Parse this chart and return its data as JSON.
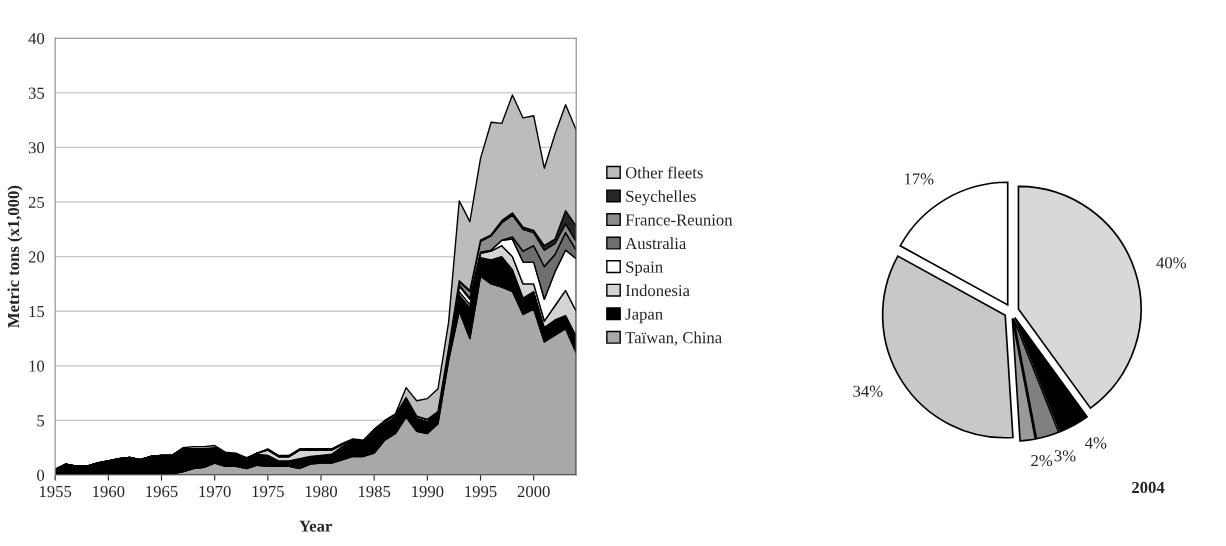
{
  "chart_data": [
    {
      "type": "area",
      "stacked": true,
      "xlabel": "Year",
      "ylabel": "Metric tons (x1,000)",
      "x": [
        1955,
        1956,
        1957,
        1958,
        1959,
        1960,
        1961,
        1962,
        1963,
        1964,
        1965,
        1966,
        1967,
        1968,
        1969,
        1970,
        1971,
        1972,
        1973,
        1974,
        1975,
        1976,
        1977,
        1978,
        1979,
        1980,
        1981,
        1982,
        1983,
        1984,
        1985,
        1986,
        1987,
        1988,
        1989,
        1990,
        1991,
        1992,
        1993,
        1994,
        1995,
        1996,
        1997,
        1998,
        1999,
        2000,
        2001,
        2002,
        2003,
        2004
      ],
      "xlim": [
        1955,
        2004
      ],
      "xticks": [
        1955,
        1960,
        1965,
        1970,
        1975,
        1980,
        1985,
        1990,
        1995,
        2000
      ],
      "ylim": [
        0,
        40
      ],
      "yticks": [
        0,
        5,
        10,
        15,
        20,
        25,
        30,
        35,
        40
      ],
      "grid": "y",
      "legend": "right",
      "series": [
        {
          "name": "Taïwan, China",
          "color": "#a8a8a8",
          "values": [
            0.1,
            0.1,
            0.1,
            0.1,
            0.1,
            0.1,
            0.1,
            0.1,
            0.1,
            0.1,
            0.1,
            0.1,
            0.3,
            0.6,
            0.7,
            1.1,
            0.8,
            0.8,
            0.6,
            0.9,
            0.8,
            0.8,
            0.8,
            0.6,
            1.0,
            1.1,
            1.1,
            1.4,
            1.7,
            1.7,
            2.0,
            3.2,
            3.8,
            5.3,
            4.0,
            3.8,
            4.7,
            10.5,
            15.0,
            12.5,
            18.2,
            17.5,
            17.2,
            16.8,
            14.7,
            15.2,
            12.2,
            12.8,
            13.4,
            11.2
          ]
        },
        {
          "name": "Japan",
          "color": "#000000",
          "values": [
            0.4,
            0.9,
            0.7,
            0.7,
            1.0,
            1.2,
            1.4,
            1.5,
            1.3,
            1.6,
            1.7,
            1.7,
            2.1,
            1.8,
            1.7,
            1.3,
            1.2,
            1.1,
            0.9,
            1.0,
            1.0,
            0.5,
            0.5,
            0.9,
            0.7,
            0.7,
            0.8,
            1.2,
            1.4,
            1.3,
            2.0,
            1.5,
            1.5,
            1.6,
            1.2,
            1.1,
            1.0,
            1.0,
            1.5,
            2.8,
            1.7,
            2.2,
            2.8,
            2.0,
            1.5,
            1.6,
            1.3,
            1.4,
            1.2,
            1.5
          ]
        },
        {
          "name": "Indonesia",
          "color": "#d4d4d4",
          "values": [
            0,
            0,
            0,
            0,
            0,
            0,
            0,
            0,
            0,
            0,
            0,
            0,
            0,
            0,
            0,
            0.1,
            0,
            0,
            0,
            0.1,
            0.5,
            0.4,
            0.4,
            0.8,
            0.6,
            0.5,
            0.4,
            0.2,
            0.1,
            0.1,
            0.1,
            0.2,
            0.2,
            0.2,
            0.2,
            0.2,
            0.1,
            0.1,
            0.3,
            0.3,
            0.4,
            0.8,
            1.0,
            1.2,
            1.3,
            0.7,
            0.6,
            1.3,
            2.3,
            2.3
          ]
        },
        {
          "name": "Spain",
          "color": "#ffffff",
          "values": [
            0,
            0,
            0,
            0,
            0,
            0,
            0,
            0,
            0,
            0,
            0,
            0,
            0,
            0,
            0,
            0,
            0,
            0,
            0,
            0,
            0,
            0,
            0,
            0,
            0,
            0,
            0,
            0,
            0,
            0,
            0,
            0,
            0,
            0,
            0,
            0,
            0,
            0,
            0.5,
            0.5,
            0.1,
            0.1,
            0.5,
            1.6,
            2.0,
            2.0,
            2.0,
            3.1,
            3.7,
            4.8
          ]
        },
        {
          "name": "Australia",
          "color": "#6e6e6e",
          "values": [
            0,
            0,
            0,
            0,
            0,
            0,
            0,
            0,
            0,
            0,
            0,
            0,
            0,
            0,
            0,
            0,
            0,
            0,
            0,
            0,
            0,
            0,
            0,
            0,
            0,
            0,
            0,
            0,
            0,
            0,
            0,
            0,
            0,
            0,
            0,
            0,
            0,
            0,
            0.1,
            0.1,
            0,
            0,
            0,
            0.2,
            1.0,
            1.5,
            3.0,
            1.6,
            1.6,
            0.8
          ]
        },
        {
          "name": "France-Reunion",
          "color": "#8c8c8c",
          "values": [
            0,
            0,
            0,
            0,
            0,
            0,
            0,
            0,
            0,
            0,
            0,
            0,
            0,
            0,
            0,
            0,
            0,
            0,
            0,
            0,
            0,
            0,
            0,
            0,
            0,
            0,
            0,
            0,
            0,
            0,
            0,
            0,
            0,
            0,
            0,
            0,
            0,
            0,
            0.3,
            0.6,
            1.0,
            1.3,
            1.6,
            2.0,
            2.0,
            1.2,
            1.5,
            1.0,
            0.8,
            0.8
          ]
        },
        {
          "name": "Seychelles",
          "color": "#262626",
          "values": [
            0,
            0,
            0,
            0,
            0,
            0,
            0,
            0,
            0,
            0,
            0,
            0,
            0,
            0,
            0,
            0,
            0,
            0,
            0,
            0,
            0,
            0,
            0,
            0,
            0,
            0,
            0,
            0,
            0,
            0,
            0,
            0,
            0,
            0,
            0,
            0,
            0,
            0,
            0.1,
            0.1,
            0.1,
            0.1,
            0.2,
            0.2,
            0.2,
            0.2,
            0.4,
            0.4,
            1.2,
            1.4
          ]
        },
        {
          "name": "Other fleets",
          "color": "#bcbcbc",
          "values": [
            0,
            0,
            0,
            0,
            0,
            0,
            0,
            0,
            0,
            0,
            0,
            0,
            0.1,
            0.2,
            0.2,
            0.2,
            0.1,
            0.1,
            0.1,
            0,
            0.1,
            0.1,
            0.1,
            0.1,
            0.1,
            0.1,
            0.1,
            0.1,
            0.1,
            0.1,
            0.1,
            0.1,
            0.1,
            0.9,
            1.4,
            1.9,
            2.1,
            2.4,
            7.3,
            6.3,
            7.5,
            10.3,
            8.9,
            10.8,
            10.0,
            10.5,
            7.1,
            9.6,
            9.7,
            8.8
          ]
        }
      ]
    },
    {
      "type": "pie",
      "title": "2004",
      "categories": [
        null,
        null,
        null,
        null,
        null,
        null
      ],
      "values": [
        40,
        4,
        3,
        2,
        34,
        17
      ],
      "colors": [
        "#d8d8d8",
        "#000000",
        "#808080",
        "#9a9a9a",
        "#c8c8c8",
        "#ffffff"
      ],
      "value_labels": [
        "40%",
        "4%",
        "3%",
        "2%",
        "34%",
        "17%"
      ]
    }
  ]
}
